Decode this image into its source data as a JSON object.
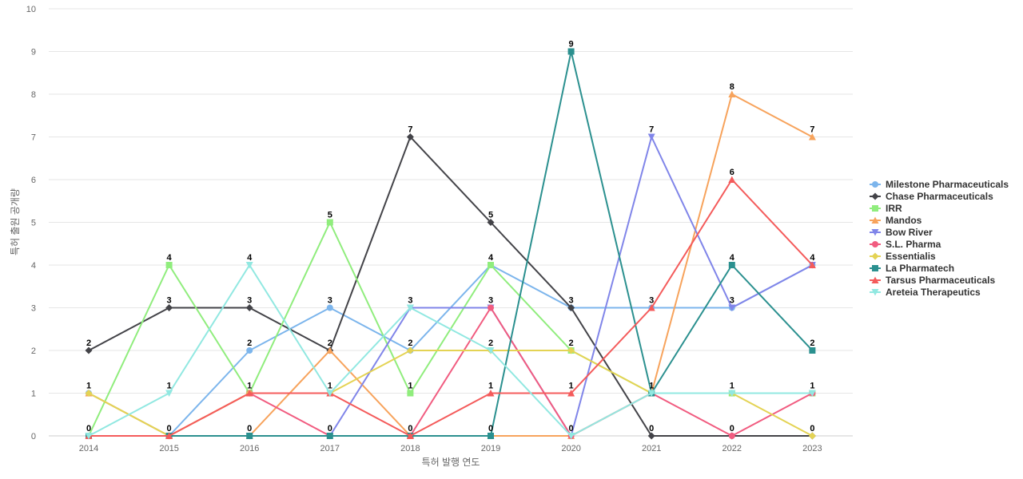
{
  "chart_data": {
    "type": "line",
    "title": "",
    "xlabel": "특허 발행 연도",
    "ylabel": "특허 출원 공개량",
    "categories": [
      "2014",
      "2015",
      "2016",
      "2017",
      "2018",
      "2019",
      "2020",
      "2021",
      "2022",
      "2023"
    ],
    "ylim": [
      0,
      10
    ],
    "yticks": [
      0,
      1,
      2,
      3,
      4,
      5,
      6,
      7,
      8,
      9,
      10
    ],
    "grid": true,
    "legend_position": "right",
    "series": [
      {
        "name": "Milestone Pharmaceuticals",
        "color": "#7cb5ec",
        "marker": "circle",
        "values": [
          1,
          0,
          2,
          3,
          2,
          4,
          3,
          3,
          3,
          4
        ]
      },
      {
        "name": "Chase Pharmaceuticals",
        "color": "#434348",
        "marker": "diamond",
        "values": [
          2,
          3,
          3,
          2,
          7,
          5,
          3,
          0,
          0,
          0
        ]
      },
      {
        "name": "IRR",
        "color": "#90ed7d",
        "marker": "square",
        "values": [
          0,
          4,
          1,
          5,
          1,
          4,
          2,
          1,
          1,
          1
        ]
      },
      {
        "name": "Mandos",
        "color": "#f7a35c",
        "marker": "triangle",
        "values": [
          1,
          0,
          0,
          2,
          0,
          0,
          0,
          1,
          8,
          7
        ]
      },
      {
        "name": "Bow River",
        "color": "#8085e9",
        "marker": "triangle-down",
        "values": [
          0,
          0,
          0,
          0,
          3,
          3,
          0,
          7,
          3,
          4
        ]
      },
      {
        "name": "S.L. Pharma",
        "color": "#f15c80",
        "marker": "circle",
        "values": [
          0,
          0,
          1,
          0,
          0,
          3,
          0,
          1,
          0,
          1
        ]
      },
      {
        "name": "Essentialis",
        "color": "#e4d354",
        "marker": "diamond",
        "values": [
          1,
          0,
          1,
          1,
          2,
          2,
          2,
          1,
          1,
          0
        ]
      },
      {
        "name": "La Pharmatech",
        "color": "#2b908f",
        "marker": "square",
        "values": [
          0,
          0,
          0,
          0,
          0,
          0,
          9,
          1,
          4,
          2
        ]
      },
      {
        "name": "Tarsus Pharmaceuticals",
        "color": "#f45b5b",
        "marker": "triangle",
        "values": [
          0,
          0,
          1,
          1,
          0,
          1,
          1,
          3,
          6,
          4
        ]
      },
      {
        "name": "Areteia Therapeutics",
        "color": "#91e8e1",
        "marker": "triangle-down",
        "values": [
          0,
          1,
          4,
          1,
          3,
          2,
          0,
          1,
          1,
          1
        ]
      }
    ],
    "data_labels": [
      {
        "x": "2014",
        "label": "2",
        "y": 2
      },
      {
        "x": "2014",
        "label": "1",
        "y": 1
      },
      {
        "x": "2014",
        "label": "0",
        "y": 0
      },
      {
        "x": "2015",
        "label": "4",
        "y": 4
      },
      {
        "x": "2015",
        "label": "3",
        "y": 3
      },
      {
        "x": "2015",
        "label": "1",
        "y": 1
      },
      {
        "x": "2015",
        "label": "0",
        "y": 0
      },
      {
        "x": "2016",
        "label": "4",
        "y": 4
      },
      {
        "x": "2016",
        "label": "3",
        "y": 3
      },
      {
        "x": "2016",
        "label": "2",
        "y": 2
      },
      {
        "x": "2016",
        "label": "1",
        "y": 1
      },
      {
        "x": "2016",
        "label": "0",
        "y": 0
      },
      {
        "x": "2017",
        "label": "5",
        "y": 5
      },
      {
        "x": "2017",
        "label": "3",
        "y": 3
      },
      {
        "x": "2017",
        "label": "2",
        "y": 2
      },
      {
        "x": "2017",
        "label": "1",
        "y": 1
      },
      {
        "x": "2017",
        "label": "0",
        "y": 0
      },
      {
        "x": "2018",
        "label": "7",
        "y": 7
      },
      {
        "x": "2018",
        "label": "3",
        "y": 3
      },
      {
        "x": "2018",
        "label": "2",
        "y": 2
      },
      {
        "x": "2018",
        "label": "1",
        "y": 1
      },
      {
        "x": "2018",
        "label": "0",
        "y": 0
      },
      {
        "x": "2019",
        "label": "5",
        "y": 5
      },
      {
        "x": "2019",
        "label": "4",
        "y": 4
      },
      {
        "x": "2019",
        "label": "3",
        "y": 3
      },
      {
        "x": "2019",
        "label": "2",
        "y": 2
      },
      {
        "x": "2019",
        "label": "1",
        "y": 1
      },
      {
        "x": "2019",
        "label": "0",
        "y": 0
      },
      {
        "x": "2020",
        "label": "9",
        "y": 9
      },
      {
        "x": "2020",
        "label": "3",
        "y": 3
      },
      {
        "x": "2020",
        "label": "2",
        "y": 2
      },
      {
        "x": "2020",
        "label": "1",
        "y": 1
      },
      {
        "x": "2020",
        "label": "0",
        "y": 0
      },
      {
        "x": "2021",
        "label": "7",
        "y": 7
      },
      {
        "x": "2021",
        "label": "3",
        "y": 3
      },
      {
        "x": "2021",
        "label": "1",
        "y": 1
      },
      {
        "x": "2021",
        "label": "0",
        "y": 0
      },
      {
        "x": "2022",
        "label": "8",
        "y": 8
      },
      {
        "x": "2022",
        "label": "6",
        "y": 6
      },
      {
        "x": "2022",
        "label": "4",
        "y": 4
      },
      {
        "x": "2022",
        "label": "3",
        "y": 3
      },
      {
        "x": "2022",
        "label": "1",
        "y": 1
      },
      {
        "x": "2022",
        "label": "0",
        "y": 0
      },
      {
        "x": "2023",
        "label": "7",
        "y": 7
      },
      {
        "x": "2023",
        "label": "4",
        "y": 4
      },
      {
        "x": "2023",
        "label": "2",
        "y": 2
      },
      {
        "x": "2023",
        "label": "1",
        "y": 1
      },
      {
        "x": "2023",
        "label": "0",
        "y": 0
      }
    ]
  }
}
